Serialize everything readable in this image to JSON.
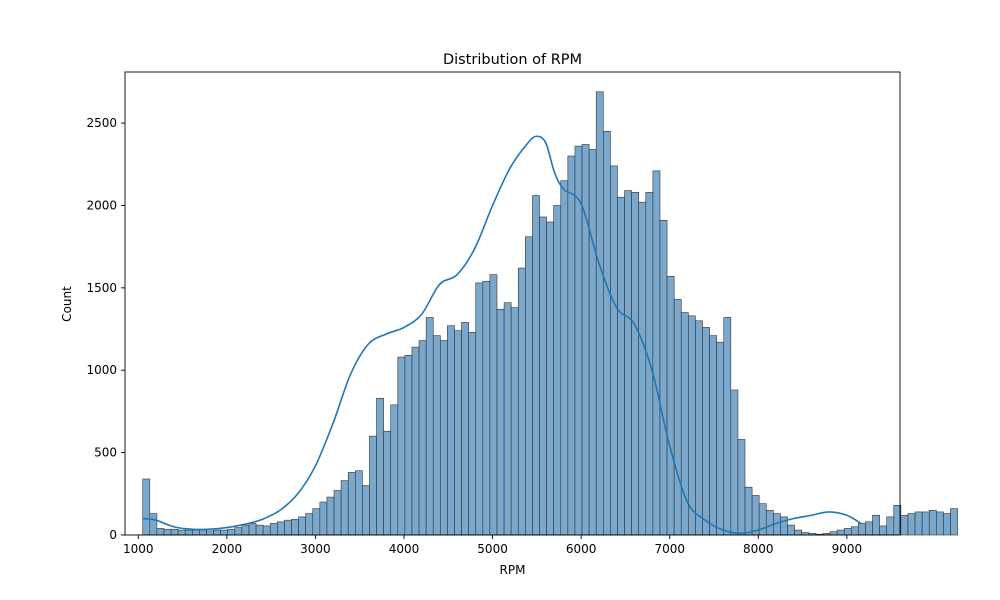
{
  "chart_data": {
    "type": "bar",
    "title": "Distribution of RPM",
    "xlabel": "RPM",
    "ylabel": "Count",
    "xlim": [
      850,
      9600
    ],
    "ylim": [
      0,
      2810
    ],
    "xticks": [
      1000,
      2000,
      3000,
      4000,
      5000,
      6000,
      7000,
      8000,
      9000
    ],
    "yticks": [
      0,
      500,
      1000,
      1500,
      2000,
      2500
    ],
    "grid": false,
    "legend": "none",
    "bin_start": 1050,
    "bin_width": 80,
    "values": [
      340,
      130,
      40,
      35,
      35,
      30,
      30,
      30,
      30,
      25,
      30,
      30,
      35,
      45,
      60,
      70,
      60,
      55,
      70,
      80,
      90,
      95,
      110,
      130,
      160,
      200,
      230,
      270,
      330,
      380,
      390,
      300,
      600,
      830,
      630,
      790,
      1080,
      1090,
      1140,
      1180,
      1320,
      1210,
      1180,
      1270,
      1240,
      1290,
      1230,
      1530,
      1540,
      1580,
      1370,
      1410,
      1380,
      1620,
      1810,
      2060,
      1930,
      1900,
      2000,
      2150,
      2300,
      2360,
      2370,
      2340,
      2690,
      2450,
      2240,
      2050,
      2090,
      2080,
      2020,
      2080,
      2210,
      1910,
      1570,
      1430,
      1350,
      1330,
      1300,
      1260,
      1210,
      1170,
      1320,
      880,
      580,
      290,
      240,
      190,
      150,
      130,
      110,
      60,
      30,
      15,
      10,
      5,
      10,
      20,
      30,
      40,
      50,
      70,
      80,
      120,
      55,
      110,
      180,
      120,
      130,
      140,
      140,
      150,
      140,
      130,
      160
    ],
    "kde": {
      "x": [
        1050,
        1200,
        1400,
        1600,
        1800,
        2000,
        2200,
        2400,
        2600,
        2800,
        3000,
        3200,
        3400,
        3600,
        3800,
        4000,
        4200,
        4400,
        4600,
        4800,
        5000,
        5200,
        5400,
        5500,
        5600,
        5700,
        5800,
        6000,
        6200,
        6400,
        6600,
        6800,
        7000,
        7200,
        7400,
        7600,
        7800,
        8000,
        8200,
        8400,
        8600,
        8800,
        9000,
        9160
      ],
      "y": [
        100,
        90,
        50,
        35,
        35,
        45,
        65,
        95,
        150,
        250,
        420,
        680,
        980,
        1160,
        1220,
        1260,
        1340,
        1520,
        1580,
        1740,
        2000,
        2230,
        2380,
        2420,
        2380,
        2200,
        2100,
        2010,
        1650,
        1380,
        1280,
        1000,
        540,
        200,
        90,
        30,
        10,
        30,
        70,
        100,
        120,
        140,
        120,
        70
      ]
    },
    "colors": {
      "bar_fill": "#7aa8cc",
      "bar_edge": "#333333",
      "kde_line": "#1f77b4"
    }
  }
}
